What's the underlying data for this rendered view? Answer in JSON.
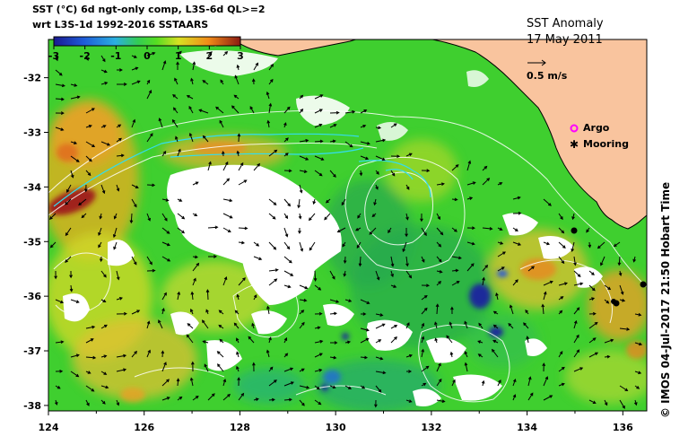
{
  "header": {
    "line1": "SST (°C) 6d ngt-only comp, L3S-6d QL>=2",
    "line2": "wrt L3S-1d 1992-2016 SSTAARS"
  },
  "colorbar": {
    "ticks": [
      "-3",
      "-2",
      "-1",
      "0",
      "1",
      "2",
      "3"
    ],
    "range": [
      -3,
      3
    ]
  },
  "title": {
    "name": "SST Anomaly",
    "date": "17 May 2011"
  },
  "scale_vector": {
    "label": "0.5 m/s"
  },
  "legend": {
    "argo": "Argo",
    "mooring": "Mooring",
    "argo_color": "#ff00ff",
    "mooring_color": "#000000"
  },
  "credit": "© IMOS 04-Jul-2017 21:50 Hobart Time",
  "axes": {
    "x_ticks": [
      "124",
      "126",
      "128",
      "130",
      "132",
      "134",
      "136"
    ],
    "y_ticks": [
      "-32",
      "-33",
      "-34",
      "-35",
      "-36",
      "-37",
      "-38"
    ],
    "lon_range": [
      124,
      136.5
    ],
    "lat_range": [
      -38.1,
      -31.3
    ]
  },
  "colors": {
    "land": "#f9c49e",
    "ocean_green": "#33cc33",
    "neutral_green": "#66dd22",
    "warm_yellow": "#ccdd22",
    "warm_orange": "#f0a020",
    "hot_red": "#a0201a",
    "cool_teal": "#22aa88",
    "cold_blue": "#1a2a9a",
    "cloud": "#ffffff"
  }
}
